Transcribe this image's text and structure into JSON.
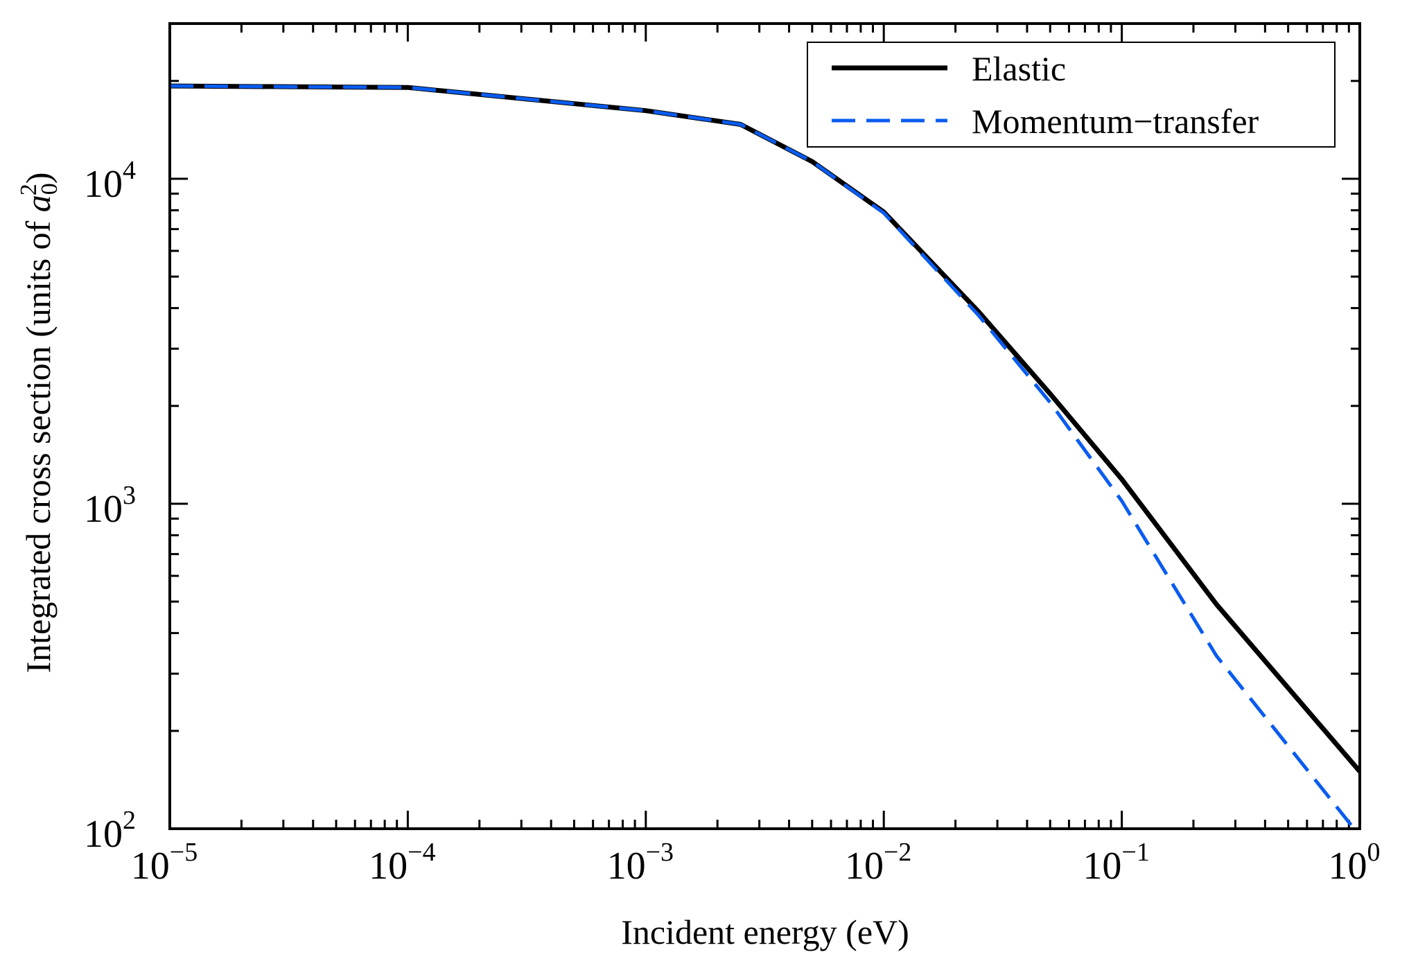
{
  "chart_data": {
    "type": "line",
    "title": "",
    "xlabel": "Incident energy (eV)",
    "ylabel": "Integrated cross section (units of a₀²)",
    "xscale": "log",
    "yscale": "log",
    "xlim": [
      1e-05,
      1
    ],
    "ylim": [
      100,
      30000
    ],
    "grid": false,
    "legend_position": "upper right",
    "x_ticks": [
      {
        "base": "10",
        "exp": "−5",
        "value": 1e-05
      },
      {
        "base": "10",
        "exp": "−4",
        "value": 0.0001
      },
      {
        "base": "10",
        "exp": "−3",
        "value": 0.001
      },
      {
        "base": "10",
        "exp": "−2",
        "value": 0.01
      },
      {
        "base": "10",
        "exp": "−1",
        "value": 0.1
      },
      {
        "base": "10",
        "exp": "0",
        "value": 1
      }
    ],
    "y_ticks": [
      {
        "base": "10",
        "exp": "2",
        "value": 100
      },
      {
        "base": "10",
        "exp": "3",
        "value": 1000
      },
      {
        "base": "10",
        "exp": "4",
        "value": 10000
      }
    ],
    "x": [
      1e-05,
      0.0001,
      0.001,
      0.0025,
      0.005,
      0.01,
      0.025,
      0.05,
      0.1,
      0.25,
      1.0
    ],
    "series": [
      {
        "name": "Elastic",
        "color": "#000000",
        "style": "solid",
        "values": [
          19300,
          19100,
          16200,
          14700,
          11300,
          7900,
          3900,
          2180,
          1190,
          490,
          150
        ]
      },
      {
        "name": "Momentum−transfer",
        "color": "#0a5cf0",
        "style": "dashed",
        "values": [
          19300,
          19100,
          16200,
          14700,
          11300,
          7850,
          3800,
          2050,
          1020,
          340,
          95
        ]
      }
    ]
  },
  "legend": {
    "items": [
      {
        "label": "Elastic"
      },
      {
        "label": "Momentum−transfer"
      }
    ]
  },
  "axes": {
    "xlabel": "Incident energy (eV)",
    "ylabel_main": "Integrated cross section (units of ",
    "ylabel_sym": "a",
    "ylabel_sub": "0",
    "ylabel_sup": "2",
    "ylabel_close": ")"
  }
}
